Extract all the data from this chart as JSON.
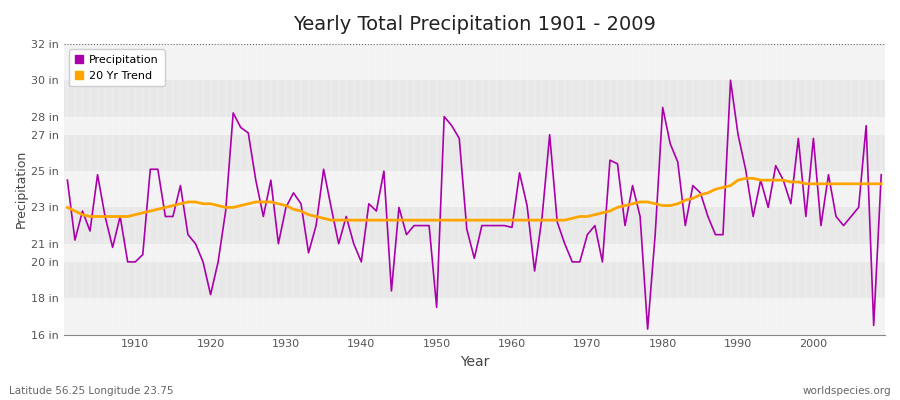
{
  "title": "Yearly Total Precipitation 1901 - 2009",
  "xlabel": "Year",
  "ylabel": "Precipitation",
  "footnote_left": "Latitude 56.25 Longitude 23.75",
  "footnote_right": "worldspecies.org",
  "line_color": "#AA00AA",
  "trend_color": "#FFA500",
  "bg_color": "#FFFFFF",
  "plot_bg_color": "#E8E8E8",
  "ylim_min": 16,
  "ylim_max": 32,
  "yticks": [
    16,
    18,
    20,
    21,
    23,
    25,
    27,
    28,
    30,
    32
  ],
  "ytick_labels": [
    "16 in",
    "18 in",
    "20 in",
    "21 in",
    "23 in",
    "25 in",
    "27 in",
    "28 in",
    "30 in",
    "32 in"
  ],
  "white_bands": [
    16,
    18,
    20,
    21,
    23,
    25,
    27,
    28,
    30
  ],
  "years": [
    1901,
    1902,
    1903,
    1904,
    1905,
    1906,
    1907,
    1908,
    1909,
    1910,
    1911,
    1912,
    1913,
    1914,
    1915,
    1916,
    1917,
    1918,
    1919,
    1920,
    1921,
    1922,
    1923,
    1924,
    1925,
    1926,
    1927,
    1928,
    1929,
    1930,
    1931,
    1932,
    1933,
    1934,
    1935,
    1936,
    1937,
    1938,
    1939,
    1940,
    1941,
    1942,
    1943,
    1944,
    1945,
    1946,
    1947,
    1948,
    1949,
    1950,
    1951,
    1952,
    1953,
    1954,
    1955,
    1956,
    1957,
    1958,
    1959,
    1960,
    1961,
    1962,
    1963,
    1964,
    1965,
    1966,
    1967,
    1968,
    1969,
    1970,
    1971,
    1972,
    1973,
    1974,
    1975,
    1976,
    1977,
    1978,
    1979,
    1980,
    1981,
    1982,
    1983,
    1984,
    1985,
    1986,
    1987,
    1988,
    1989,
    1990,
    1991,
    1992,
    1993,
    1994,
    1995,
    1996,
    1997,
    1998,
    1999,
    2000,
    2001,
    2002,
    2003,
    2004,
    2005,
    2006,
    2007,
    2008,
    2009
  ],
  "precip": [
    24.5,
    21.2,
    22.8,
    21.7,
    24.8,
    22.5,
    20.8,
    22.5,
    20.0,
    20.0,
    20.4,
    25.1,
    25.1,
    22.5,
    22.5,
    24.2,
    21.5,
    21.0,
    20.0,
    18.2,
    20.0,
    22.8,
    28.2,
    27.4,
    27.1,
    24.5,
    22.5,
    24.5,
    21.0,
    23.0,
    23.8,
    23.2,
    20.5,
    22.0,
    25.1,
    23.0,
    21.0,
    22.5,
    21.0,
    20.0,
    23.2,
    22.8,
    25.0,
    18.4,
    23.0,
    21.5,
    22.0,
    22.0,
    22.0,
    17.5,
    28.0,
    27.5,
    26.8,
    21.8,
    20.2,
    22.0,
    22.0,
    22.0,
    22.0,
    21.9,
    24.9,
    23.1,
    19.5,
    22.5,
    27.0,
    22.2,
    21.0,
    20.0,
    20.0,
    21.5,
    22.0,
    20.0,
    25.6,
    25.4,
    22.0,
    24.2,
    22.5,
    16.3,
    21.5,
    28.5,
    26.5,
    25.5,
    22.0,
    24.2,
    23.8,
    22.5,
    21.5,
    21.5,
    30.0,
    27.0,
    25.1,
    22.5,
    24.5,
    23.0,
    25.3,
    24.5,
    23.2,
    26.8,
    22.5,
    26.8,
    22.0,
    24.8,
    22.5,
    22.0,
    22.5,
    23.0,
    27.5,
    16.5,
    24.8
  ],
  "trend": [
    23.0,
    22.8,
    22.6,
    22.5,
    22.5,
    22.5,
    22.5,
    22.5,
    22.5,
    22.6,
    22.7,
    22.8,
    22.9,
    23.0,
    23.1,
    23.2,
    23.3,
    23.3,
    23.2,
    23.2,
    23.1,
    23.0,
    23.0,
    23.1,
    23.2,
    23.3,
    23.3,
    23.3,
    23.2,
    23.1,
    22.9,
    22.8,
    22.6,
    22.5,
    22.4,
    22.3,
    22.3,
    22.3,
    22.3,
    22.3,
    22.3,
    22.3,
    22.3,
    22.3,
    22.3,
    22.3,
    22.3,
    22.3,
    22.3,
    22.3,
    22.3,
    22.3,
    22.3,
    22.3,
    22.3,
    22.3,
    22.3,
    22.3,
    22.3,
    22.3,
    22.3,
    22.3,
    22.3,
    22.3,
    22.3,
    22.3,
    22.3,
    22.4,
    22.5,
    22.5,
    22.6,
    22.7,
    22.8,
    23.0,
    23.1,
    23.2,
    23.3,
    23.3,
    23.2,
    23.1,
    23.1,
    23.2,
    23.4,
    23.5,
    23.7,
    23.8,
    24.0,
    24.1,
    24.2,
    24.5,
    24.6,
    24.6,
    24.5,
    24.5,
    24.5,
    24.5,
    24.4,
    24.4,
    24.3,
    24.3,
    24.3,
    24.3,
    24.3,
    24.3,
    24.3,
    24.3,
    24.3,
    24.3,
    24.3
  ]
}
